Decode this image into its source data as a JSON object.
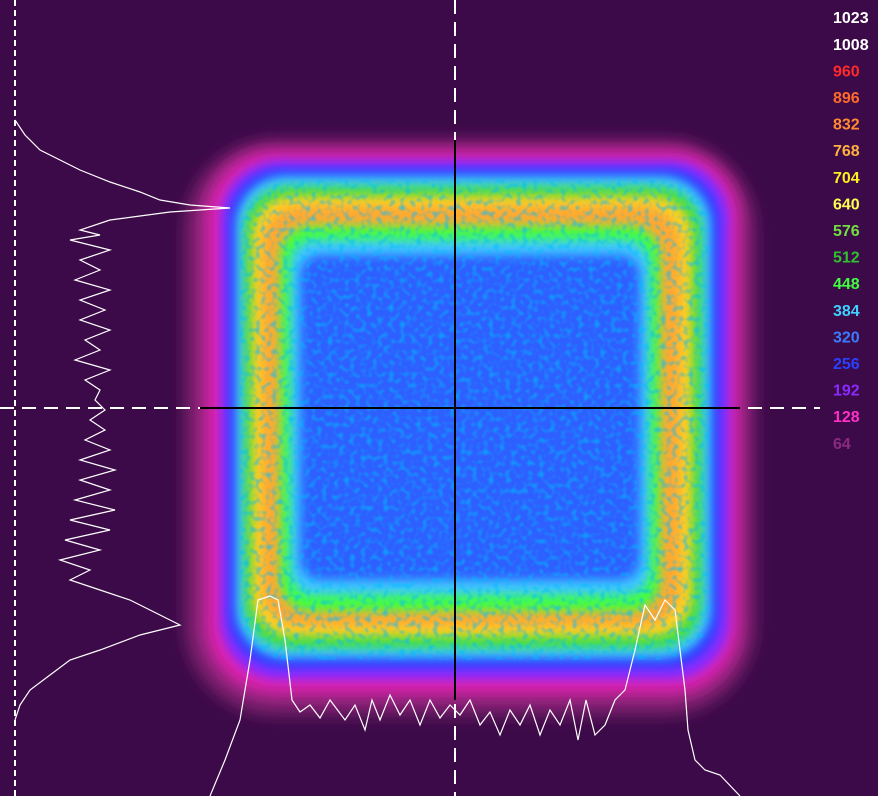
{
  "color_scale": [
    {
      "label": "1023",
      "color": "#ffffff"
    },
    {
      "label": "1008",
      "color": "#ffffff"
    },
    {
      "label": "960",
      "color": "#ff2a2a"
    },
    {
      "label": "896",
      "color": "#ff6a2a"
    },
    {
      "label": "832",
      "color": "#ff8a30"
    },
    {
      "label": "768",
      "color": "#ffb040"
    },
    {
      "label": "704",
      "color": "#ffee20"
    },
    {
      "label": "640",
      "color": "#ffff50"
    },
    {
      "label": "576",
      "color": "#70e040"
    },
    {
      "label": "512",
      "color": "#30c030"
    },
    {
      "label": "448",
      "color": "#40ff40"
    },
    {
      "label": "384",
      "color": "#40d0ff"
    },
    {
      "label": "320",
      "color": "#3a7cff"
    },
    {
      "label": "256",
      "color": "#2a40ff"
    },
    {
      "label": "192",
      "color": "#8a2aff"
    },
    {
      "label": "128",
      "color": "#ff30c8"
    },
    {
      "label": "64",
      "color": "#8a2a80"
    }
  ]
}
